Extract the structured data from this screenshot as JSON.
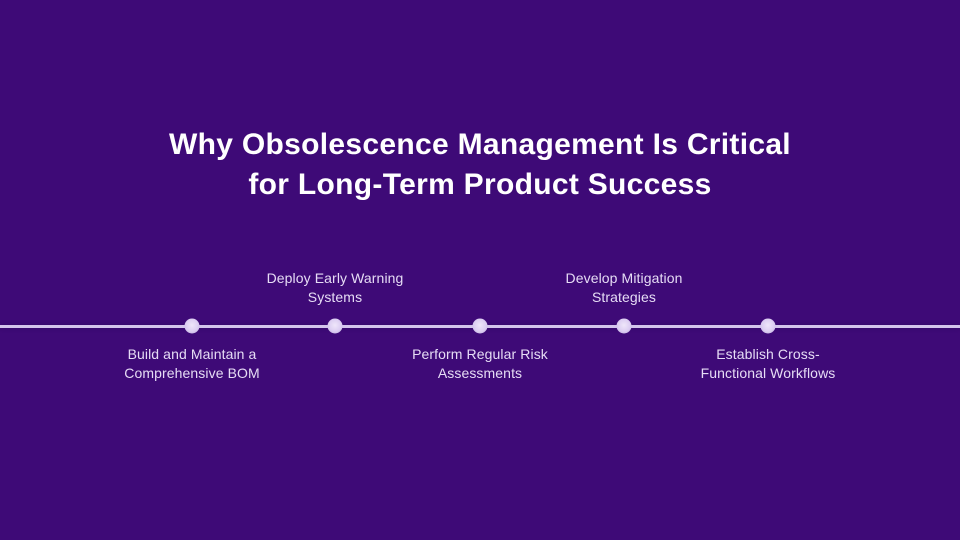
{
  "slide": {
    "title": {
      "text": "Why Obsolescence Management Is Critical for Long-Term Product Success",
      "line1": "Why Obsolescence Management Is Critical",
      "line2": "for Long-Term Product Success"
    },
    "timeline": {
      "items": [
        {
          "label": "Build and Maintain a Comprehensive BOM",
          "lines": [
            "Build and Maintain a",
            "Comprehensive BOM"
          ],
          "side": "below"
        },
        {
          "label": "Deploy Early Warning Systems",
          "lines": [
            "Deploy Early Warning",
            "Systems"
          ],
          "side": "above"
        },
        {
          "label": "Perform Regular Risk Assessments",
          "lines": [
            "Perform Regular Risk",
            "Assessments"
          ],
          "side": "below"
        },
        {
          "label": "Develop Mitigation Strategies",
          "lines": [
            "Develop Mitigation",
            "Strategies"
          ],
          "side": "above"
        },
        {
          "label": "Establish Cross-Functional Workflows",
          "lines": [
            "Establish Cross-",
            "Functional Workflows"
          ],
          "side": "below"
        }
      ]
    },
    "colors": {
      "background": "#3e0a77",
      "title_text": "#ffffff",
      "label_text": "#e6dcf5",
      "timeline_line": "#d3c4ec",
      "timeline_dot": "#dccef2"
    }
  }
}
